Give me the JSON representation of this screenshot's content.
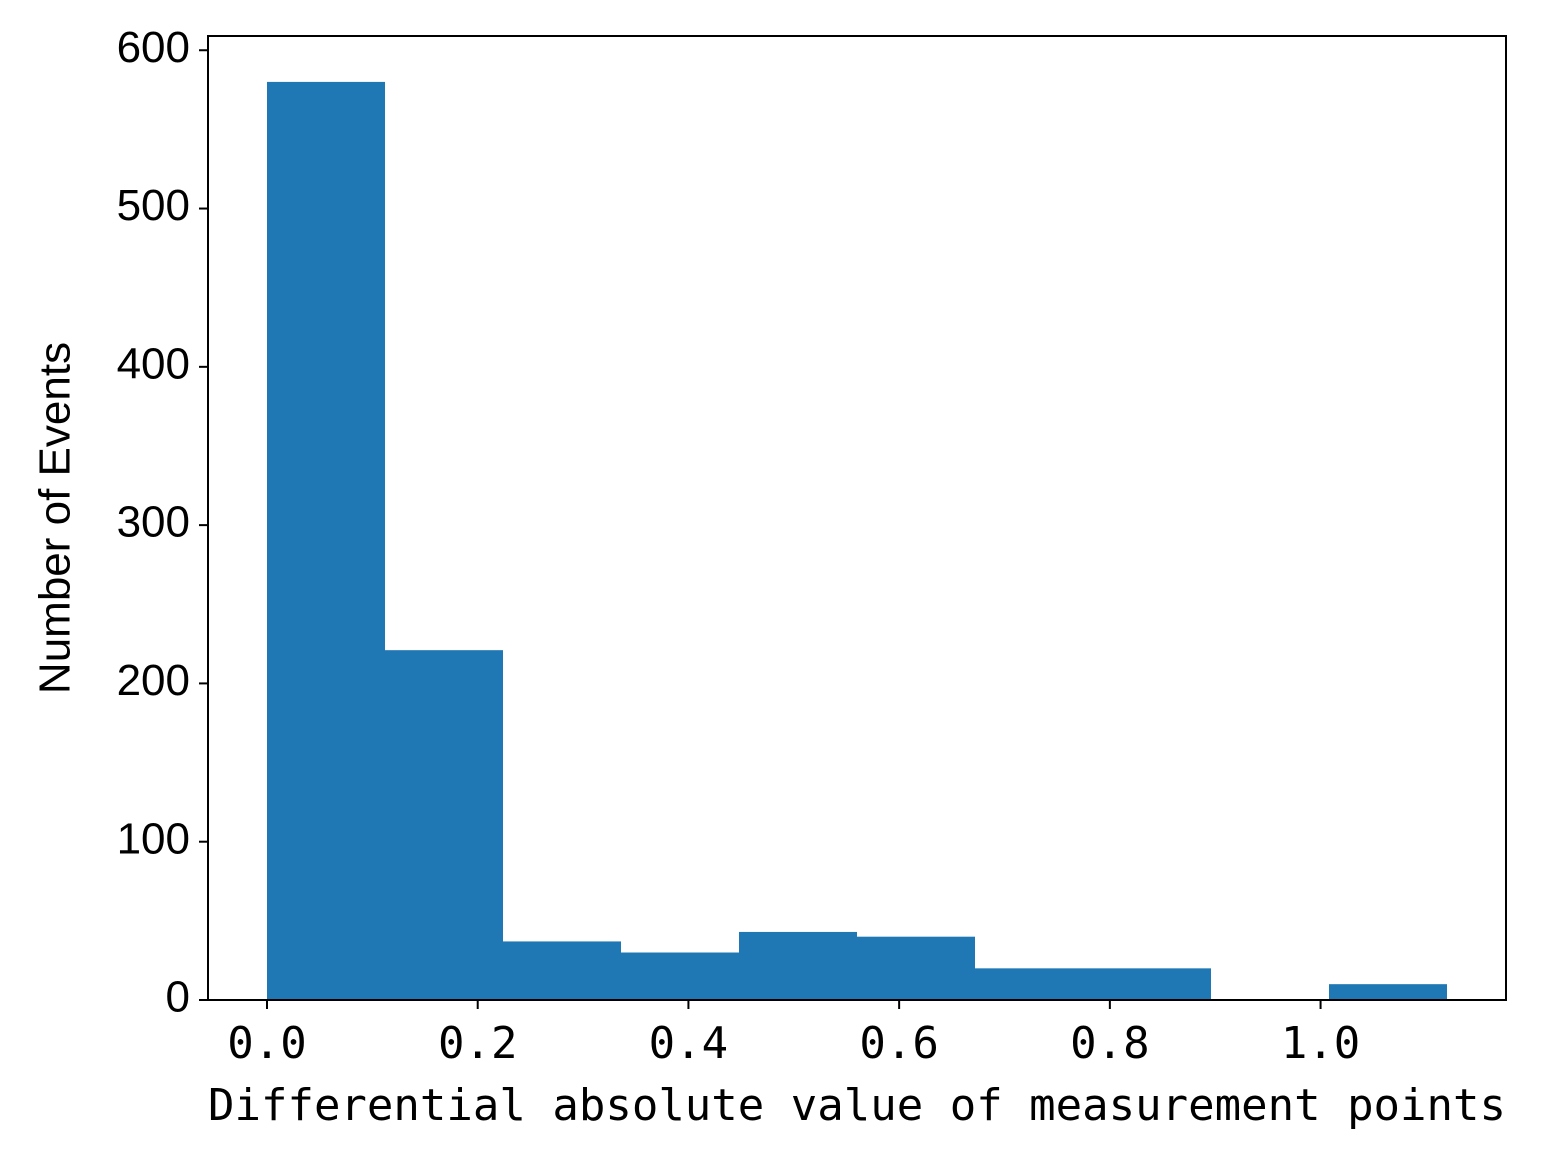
{
  "chart_data": {
    "type": "histogram",
    "x_label": "Differential absolute value of measurement points",
    "y_label": "Number of Events",
    "bins": [
      0,
      0.112,
      0.224,
      0.336,
      0.448,
      0.56,
      0.672,
      0.784,
      0.896,
      1.008,
      1.12
    ],
    "values": [
      580,
      221,
      37,
      30,
      43,
      40,
      20,
      20,
      0,
      10
    ],
    "color": "#1f77b4",
    "xlim": [
      -0.056,
      1.176
    ],
    "ylim": [
      0,
      609
    ],
    "xticks": [
      {
        "value": 0,
        "label": "0.0"
      },
      0.2,
      0.4,
      0.6,
      0.8,
      {
        "value": 1,
        "label": "1.0"
      }
    ],
    "yticks": [
      0,
      100,
      200,
      300,
      400,
      500,
      600
    ]
  }
}
